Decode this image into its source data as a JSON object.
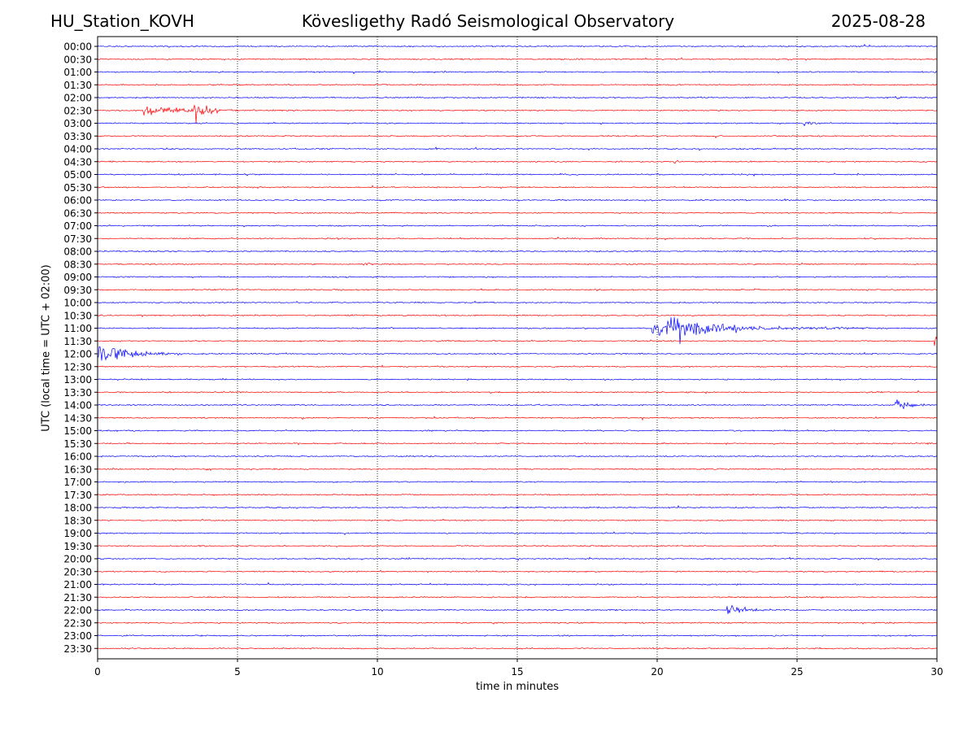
{
  "header": {
    "left": "HU_Station_KOVH",
    "center": "Kövesligethy Radó Seismological Observatory",
    "right": "2025-08-28"
  },
  "chart_data": {
    "type": "line",
    "subtype": "helicorder",
    "xlabel": "time in minutes",
    "ylabel": "UTC (local time = UTC + 02:00)",
    "xlim": [
      0,
      30
    ],
    "xticks": [
      0,
      5,
      10,
      15,
      20,
      25,
      30
    ],
    "vertical_grid": "dotted at each 5-minute tick",
    "colors": {
      "odd_rows": "#0000ff",
      "even_rows": "#ff0000",
      "axis": "#000000"
    },
    "row_labels": [
      "00:00",
      "00:30",
      "01:00",
      "01:30",
      "02:00",
      "02:30",
      "03:00",
      "03:30",
      "04:00",
      "04:30",
      "05:00",
      "05:30",
      "06:00",
      "06:30",
      "07:00",
      "07:30",
      "08:00",
      "08:30",
      "09:00",
      "09:30",
      "10:00",
      "10:30",
      "11:00",
      "11:30",
      "12:00",
      "12:30",
      "13:00",
      "13:30",
      "14:00",
      "14:30",
      "15:00",
      "15:30",
      "16:00",
      "16:30",
      "17:00",
      "17:30",
      "18:00",
      "18:30",
      "19:00",
      "19:30",
      "20:00",
      "20:30",
      "21:00",
      "21:30",
      "22:00",
      "22:30",
      "23:00",
      "23:30"
    ],
    "events": [
      {
        "row": "02:30",
        "start_min": 1.6,
        "duration_min": 3.0,
        "amplitude": 1.0
      },
      {
        "row": "02:30",
        "start_min": 3.45,
        "duration_min": 1.6,
        "amplitude": 1.0
      },
      {
        "row": "02:00",
        "start_min": 28.5,
        "duration_min": 0.3,
        "amplitude": 0.35
      },
      {
        "row": "03:00",
        "start_min": 25.2,
        "duration_min": 1.0,
        "amplitude": 0.45
      },
      {
        "row": "04:30",
        "start_min": 20.6,
        "duration_min": 0.4,
        "amplitude": 0.25
      },
      {
        "row": "08:30",
        "start_min": 9.5,
        "duration_min": 0.6,
        "amplitude": 0.25
      },
      {
        "row": "11:00",
        "start_min": 19.8,
        "duration_min": 8.5,
        "amplitude": 0.85
      },
      {
        "row": "11:00",
        "start_min": 20.4,
        "duration_min": 3.5,
        "amplitude": 1.0
      },
      {
        "row": "11:30",
        "start_min": 29.9,
        "duration_min": 0.2,
        "amplitude": 1.1
      },
      {
        "row": "12:00",
        "start_min": 0.0,
        "duration_min": 3.0,
        "amplitude": 1.4
      },
      {
        "row": "14:00",
        "start_min": 28.5,
        "duration_min": 1.2,
        "amplitude": 0.9
      },
      {
        "row": "22:00",
        "start_min": 22.5,
        "duration_min": 2.2,
        "amplitude": 0.6
      }
    ]
  }
}
